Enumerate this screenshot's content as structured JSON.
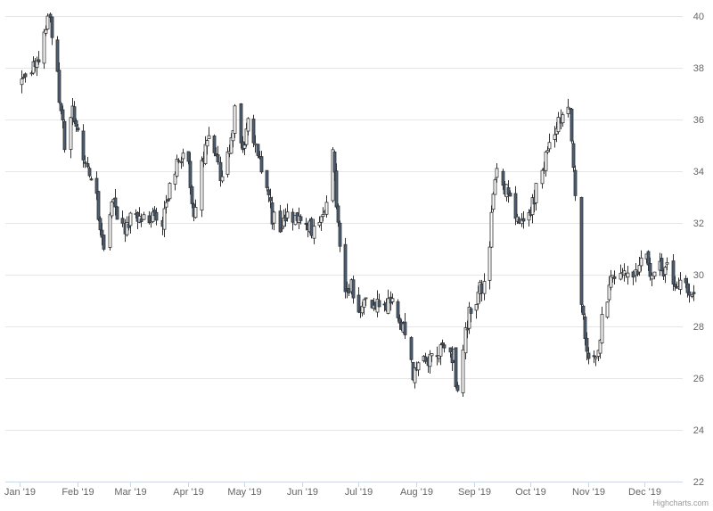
{
  "chart_data": {
    "type": "candlestick",
    "title": "",
    "xlabel": "",
    "ylabel": "",
    "ylim": [
      22,
      40
    ],
    "yticks": [
      22,
      24,
      26,
      28,
      30,
      32,
      34,
      36,
      38,
      40
    ],
    "x_ticks": [
      {
        "label": "Jan '19",
        "date": "2019-01-01"
      },
      {
        "label": "Feb '19",
        "date": "2019-02-01"
      },
      {
        "label": "Mar '19",
        "date": "2019-03-01"
      },
      {
        "label": "Apr '19",
        "date": "2019-04-01"
      },
      {
        "label": "May '19",
        "date": "2019-05-01"
      },
      {
        "label": "Jun '19",
        "date": "2019-06-01"
      },
      {
        "label": "Jul '19",
        "date": "2019-07-01"
      },
      {
        "label": "Aug '19",
        "date": "2019-08-01"
      },
      {
        "label": "Sep '19",
        "date": "2019-09-01"
      },
      {
        "label": "Oct '19",
        "date": "2019-10-01"
      },
      {
        "label": "Nov '19",
        "date": "2019-11-01"
      },
      {
        "label": "Dec '19",
        "date": "2019-12-01"
      }
    ],
    "y_axis_side": "right",
    "grid": true,
    "up_color": "#ffffff",
    "down_color": "#4a5d74",
    "wick_color": "#333333",
    "credit": "Highcharts.com",
    "anchors": [
      [
        "2019-01-02",
        37.3
      ],
      [
        "2019-01-07",
        37.9
      ],
      [
        "2019-01-10",
        38.1
      ],
      [
        "2019-01-14",
        39.6
      ],
      [
        "2019-01-17",
        40.1
      ],
      [
        "2019-01-22",
        36.9
      ],
      [
        "2019-01-25",
        35.0
      ],
      [
        "2019-01-29",
        36.5
      ],
      [
        "2019-02-01",
        35.5
      ],
      [
        "2019-02-06",
        34.0
      ],
      [
        "2019-02-11",
        32.8
      ],
      [
        "2019-02-15",
        31.2
      ],
      [
        "2019-02-20",
        32.8
      ],
      [
        "2019-02-26",
        31.8
      ],
      [
        "2019-03-04",
        32.3
      ],
      [
        "2019-03-08",
        32.2
      ],
      [
        "2019-03-13",
        32.4
      ],
      [
        "2019-03-18",
        32.1
      ],
      [
        "2019-03-22",
        33.4
      ],
      [
        "2019-03-27",
        34.6
      ],
      [
        "2019-04-01",
        34.2
      ],
      [
        "2019-04-04",
        32.2
      ],
      [
        "2019-04-08",
        34.2
      ],
      [
        "2019-04-11",
        35.4
      ],
      [
        "2019-04-15",
        34.9
      ],
      [
        "2019-04-18",
        33.7
      ],
      [
        "2019-04-23",
        34.8
      ],
      [
        "2019-04-26",
        36.2
      ],
      [
        "2019-04-30",
        35.1
      ],
      [
        "2019-05-03",
        35.7
      ],
      [
        "2019-05-08",
        34.9
      ],
      [
        "2019-05-13",
        33.4
      ],
      [
        "2019-05-16",
        32.3
      ],
      [
        "2019-05-20",
        31.8
      ],
      [
        "2019-05-23",
        32.4
      ],
      [
        "2019-05-29",
        32.1
      ],
      [
        "2019-06-03",
        32.0
      ],
      [
        "2019-06-06",
        31.8
      ],
      [
        "2019-06-10",
        32.0
      ],
      [
        "2019-06-13",
        32.3
      ],
      [
        "2019-06-17",
        34.6
      ],
      [
        "2019-06-20",
        31.7
      ],
      [
        "2019-06-24",
        29.3
      ],
      [
        "2019-06-27",
        29.5
      ],
      [
        "2019-07-02",
        28.6
      ],
      [
        "2019-07-08",
        29.0
      ],
      [
        "2019-07-12",
        28.7
      ],
      [
        "2019-07-17",
        29.0
      ],
      [
        "2019-07-22",
        28.5
      ],
      [
        "2019-07-26",
        27.6
      ],
      [
        "2019-07-30",
        26.0
      ],
      [
        "2019-08-02",
        26.3
      ],
      [
        "2019-08-06",
        26.6
      ],
      [
        "2019-08-09",
        26.9
      ],
      [
        "2019-08-13",
        27.0
      ],
      [
        "2019-08-16",
        27.3
      ],
      [
        "2019-08-21",
        26.8
      ],
      [
        "2019-08-23",
        25.2
      ],
      [
        "2019-08-27",
        28.0
      ],
      [
        "2019-08-30",
        28.6
      ],
      [
        "2019-09-04",
        29.5
      ],
      [
        "2019-09-06",
        29.4
      ],
      [
        "2019-09-09",
        31.2
      ],
      [
        "2019-09-11",
        33.4
      ],
      [
        "2019-09-13",
        34.4
      ],
      [
        "2019-09-17",
        33.4
      ],
      [
        "2019-09-20",
        32.9
      ],
      [
        "2019-09-24",
        32.2
      ],
      [
        "2019-09-27",
        32.1
      ],
      [
        "2019-10-01",
        32.5
      ],
      [
        "2019-10-04",
        33.2
      ],
      [
        "2019-10-09",
        34.6
      ],
      [
        "2019-10-14",
        35.6
      ],
      [
        "2019-10-18",
        36.4
      ],
      [
        "2019-10-22",
        36.7
      ],
      [
        "2019-10-25",
        32.9
      ],
      [
        "2019-10-28",
        28.8
      ],
      [
        "2019-10-31",
        27.1
      ],
      [
        "2019-11-05",
        26.8
      ],
      [
        "2019-11-08",
        28.2
      ],
      [
        "2019-11-12",
        29.5
      ],
      [
        "2019-11-15",
        30.1
      ],
      [
        "2019-11-19",
        30.3
      ],
      [
        "2019-11-22",
        29.8
      ],
      [
        "2019-11-27",
        30.2
      ],
      [
        "2019-12-02",
        30.6
      ],
      [
        "2019-12-05",
        29.7
      ],
      [
        "2019-12-09",
        30.2
      ],
      [
        "2019-12-12",
        30.3
      ],
      [
        "2019-12-16",
        29.7
      ],
      [
        "2019-12-19",
        29.6
      ],
      [
        "2019-12-24",
        29.3
      ]
    ]
  }
}
